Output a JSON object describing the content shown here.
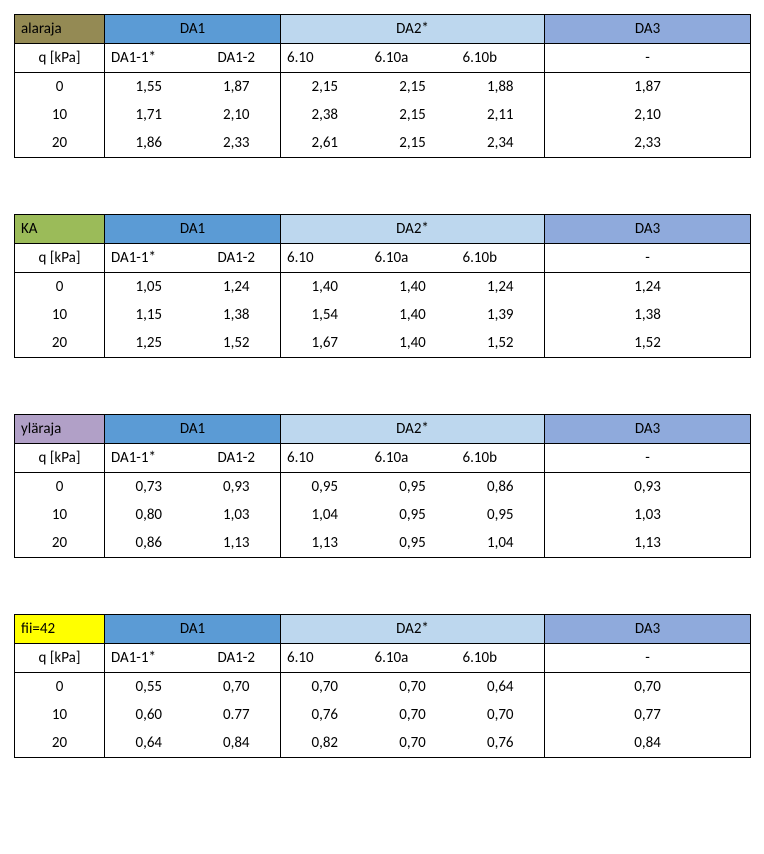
{
  "common": {
    "header_da1": "DA1",
    "header_da2": "DA2*",
    "header_da3": "DA3",
    "sub_q": "q [kPa]",
    "sub_da1_1": "DA1-1*",
    "sub_da1_2": "DA1-2",
    "sub_da2_1": "6.10",
    "sub_da2_2": "6.10a",
    "sub_da2_3": "6.10b",
    "sub_da3": "-",
    "colors": {
      "da1_bg": "#5b9bd5",
      "da2_bg": "#bdd7ee",
      "da3_bg": "#8faadc",
      "border": "#000000",
      "text": "#000000",
      "bg": "#ffffff"
    }
  },
  "tables": [
    {
      "corner_label": "alaraja",
      "corner_bg": "#948a54",
      "rows": [
        {
          "q": "0",
          "da1_1": "1,55",
          "da1_2": "1,87",
          "da2_1": "2,15",
          "da2_2": "2,15",
          "da2_3": "1,88",
          "da3": "1,87"
        },
        {
          "q": "10",
          "da1_1": "1,71",
          "da1_2": "2,10",
          "da2_1": "2,38",
          "da2_2": "2,15",
          "da2_3": "2,11",
          "da3": "2,10"
        },
        {
          "q": "20",
          "da1_1": "1,86",
          "da1_2": "2,33",
          "da2_1": "2,61",
          "da2_2": "2,15",
          "da2_3": "2,34",
          "da3": "2,33"
        }
      ]
    },
    {
      "corner_label": "KA",
      "corner_bg": "#9bbb59",
      "rows": [
        {
          "q": "0",
          "da1_1": "1,05",
          "da1_2": "1,24",
          "da2_1": "1,40",
          "da2_2": "1,40",
          "da2_3": "1,24",
          "da3": "1,24"
        },
        {
          "q": "10",
          "da1_1": "1,15",
          "da1_2": "1,38",
          "da2_1": "1,54",
          "da2_2": "1,40",
          "da2_3": "1,39",
          "da3": "1,38"
        },
        {
          "q": "20",
          "da1_1": "1,25",
          "da1_2": "1,52",
          "da2_1": "1,67",
          "da2_2": "1,40",
          "da2_3": "1,52",
          "da3": "1,52"
        }
      ]
    },
    {
      "corner_label": "yläraja",
      "corner_bg": "#b1a0c7",
      "rows": [
        {
          "q": "0",
          "da1_1": "0,73",
          "da1_2": "0,93",
          "da2_1": "0,95",
          "da2_2": "0,95",
          "da2_3": "0,86",
          "da3": "0,93"
        },
        {
          "q": "10",
          "da1_1": "0,80",
          "da1_2": "1,03",
          "da2_1": "1,04",
          "da2_2": "0,95",
          "da2_3": "0,95",
          "da3": "1,03"
        },
        {
          "q": "20",
          "da1_1": "0,86",
          "da1_2": "1,13",
          "da2_1": "1,13",
          "da2_2": "0,95",
          "da2_3": "1,04",
          "da3": "1,13"
        }
      ]
    },
    {
      "corner_label": "fii=42",
      "corner_bg": "#ffff00",
      "rows": [
        {
          "q": "0",
          "da1_1": "0,55",
          "da1_2": "0,70",
          "da2_1": "0,70",
          "da2_2": "0,70",
          "da2_3": "0,64",
          "da3": "0,70"
        },
        {
          "q": "10",
          "da1_1": "0,60",
          "da1_2": "0.77",
          "da2_1": "0,76",
          "da2_2": "0,70",
          "da2_3": "0,70",
          "da3": "0,77"
        },
        {
          "q": "20",
          "da1_1": "0,64",
          "da1_2": "0,84",
          "da2_1": "0,82",
          "da2_2": "0,70",
          "da2_3": "0,76",
          "da3": "0,84"
        }
      ]
    }
  ]
}
